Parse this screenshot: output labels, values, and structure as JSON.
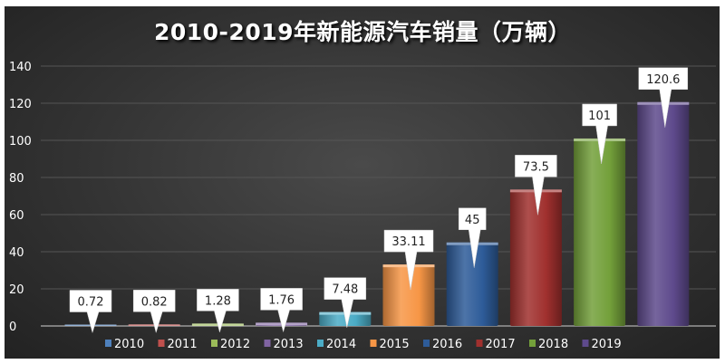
{
  "chart_data": {
    "type": "bar",
    "title": "2010-2019年新能源汽车销量（万辆）",
    "xlabel": "",
    "ylabel": "",
    "ylim": [
      0,
      140
    ],
    "yticks": [
      0,
      20,
      40,
      60,
      80,
      100,
      120,
      140
    ],
    "grid": true,
    "legend": "bottom",
    "categories": [
      "2010",
      "2011",
      "2012",
      "2013",
      "2014",
      "2015",
      "2016",
      "2017",
      "2018",
      "2019"
    ],
    "values": [
      0.72,
      0.82,
      1.28,
      1.76,
      7.48,
      33.11,
      45,
      73.5,
      101,
      120.6
    ],
    "data_labels": [
      "0.72",
      "0.82",
      "1.28",
      "1.76",
      "7.48",
      "33.11",
      "45",
      "73.5",
      "101",
      "120.6"
    ],
    "colors": [
      "#4f81bd",
      "#c0504d",
      "#9bbb59",
      "#8064a2",
      "#4bacc6",
      "#f79646",
      "#2e5c99",
      "#a0302e",
      "#73a03a",
      "#5e4a8c"
    ],
    "background": "#333333"
  }
}
